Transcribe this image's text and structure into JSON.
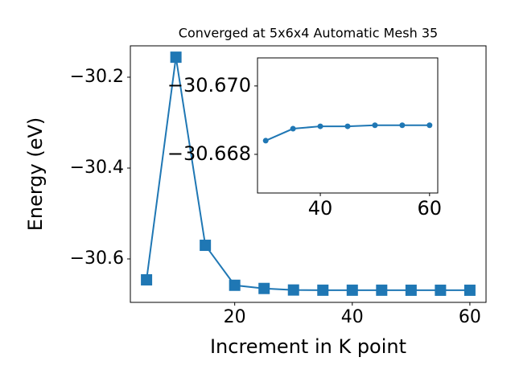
{
  "chart_data": [
    {
      "type": "line",
      "title": "Converged at 5x6x4 Automatic Mesh 35",
      "xlabel": "Increment in K point",
      "ylabel": "Energy (eV)",
      "x": [
        5,
        10,
        15,
        20,
        25,
        30,
        35,
        40,
        45,
        50,
        55,
        60
      ],
      "series": [
        {
          "name": "Energy",
          "color": "#1f77b4",
          "values": [
            -30.646,
            -30.156,
            -30.57,
            -30.658,
            -30.665,
            -30.6684,
            -30.6688,
            -30.6688,
            -30.6688,
            -30.6689,
            -30.6689,
            -30.6689
          ]
        }
      ],
      "marker": "square",
      "xlim": [
        2.25,
        62.75
      ],
      "xticks": [
        20,
        40,
        60
      ],
      "ylim": [
        -30.6956,
        -30.131
      ],
      "yticks": [
        {
          "value": -30.6,
          "label": "−30.6"
        },
        {
          "value": -30.4,
          "label": "−30.4"
        },
        {
          "value": -30.2,
          "label": "−30.2"
        }
      ]
    },
    {
      "type": "line",
      "x": [
        30,
        35,
        40,
        45,
        50,
        55,
        60
      ],
      "series": [
        {
          "name": "Energy",
          "color": "#1f77b4",
          "values": [
            -30.6684,
            -30.66875,
            -30.66882,
            -30.66882,
            -30.66885,
            -30.66885,
            -30.66885
          ]
        }
      ],
      "marker": "circle",
      "xlim": [
        28.5,
        61.5
      ],
      "xticks": [
        40,
        60
      ],
      "ylim": [
        -30.66687,
        -30.67082
      ],
      "yticks": [
        {
          "value": -30.668,
          "label": "−30.668"
        },
        {
          "value": -30.67,
          "label": "−30.670"
        }
      ]
    }
  ]
}
